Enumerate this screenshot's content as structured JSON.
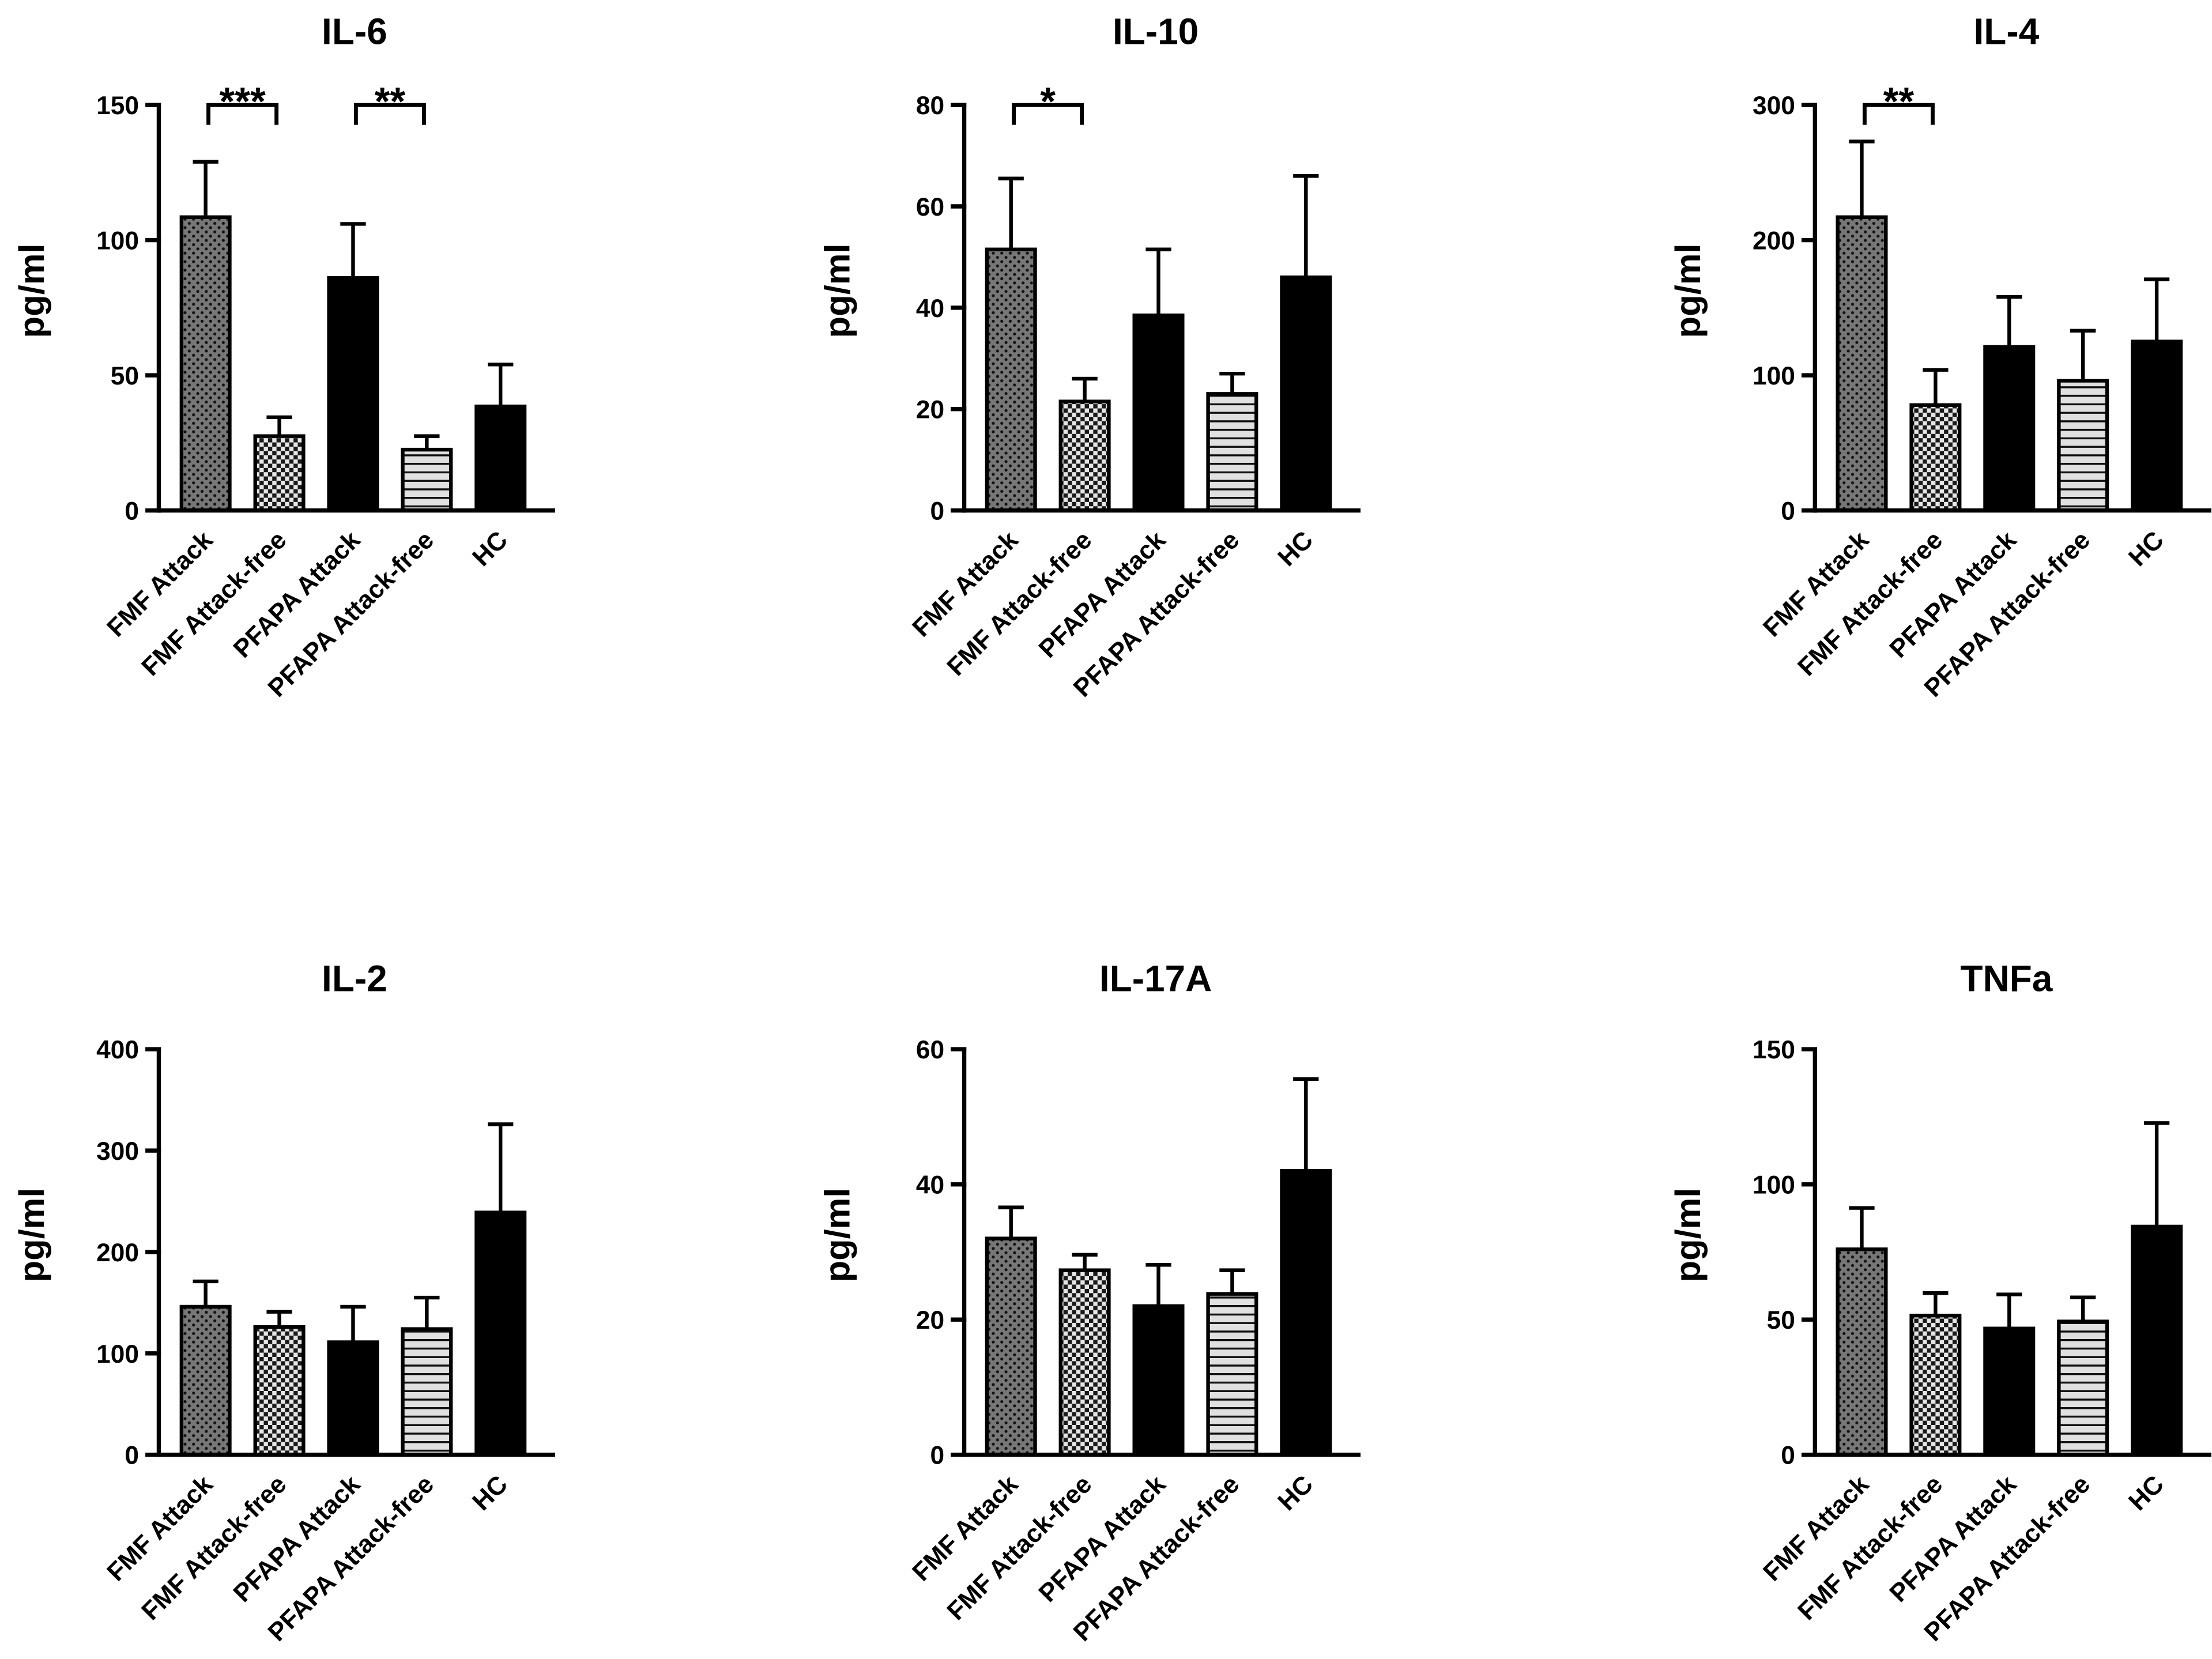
{
  "chart_data": [
    {
      "type": "bar",
      "title": "IL-6",
      "xlabel": "",
      "ylabel": "pg/ml",
      "categories": [
        "FMF Attack",
        "FMF Attack-free",
        "PFAPA Attack",
        "PFAPA Attack-free",
        "HC"
      ],
      "values": [
        108.5,
        27.5,
        86,
        22.5,
        38.5
      ],
      "errors": [
        20.5,
        7,
        20,
        5,
        15.5
      ],
      "ylim": [
        0,
        150
      ],
      "yticks": [
        0,
        50,
        100,
        150
      ],
      "significance": [
        {
          "from": 0,
          "to": 1,
          "label": "***"
        },
        {
          "from": 2,
          "to": 3,
          "label": "**"
        }
      ]
    },
    {
      "type": "bar",
      "title": "IL-10",
      "xlabel": "",
      "ylabel": "pg/ml",
      "categories": [
        "FMF Attack",
        "FMF Attack-free",
        "PFAPA Attack",
        "PFAPA Attack-free",
        "HC"
      ],
      "values": [
        51.5,
        21.5,
        38.5,
        23,
        46
      ],
      "errors": [
        14,
        4.5,
        13,
        4,
        20
      ],
      "ylim": [
        0,
        80
      ],
      "yticks": [
        0,
        20,
        40,
        60,
        80
      ],
      "significance": [
        {
          "from": 0,
          "to": 1,
          "label": "*"
        }
      ]
    },
    {
      "type": "bar",
      "title": "IL-4",
      "xlabel": "",
      "ylabel": "pg/ml",
      "categories": [
        "FMF Attack",
        "FMF Attack-free",
        "PFAPA Attack",
        "PFAPA Attack-free",
        "HC"
      ],
      "values": [
        217,
        78,
        121,
        96,
        125
      ],
      "errors": [
        56,
        26,
        37,
        37,
        46
      ],
      "ylim": [
        0,
        300
      ],
      "yticks": [
        0,
        100,
        200,
        300
      ],
      "significance": [
        {
          "from": 0,
          "to": 1,
          "label": "**"
        }
      ]
    },
    {
      "type": "bar",
      "title": "IL-2",
      "xlabel": "",
      "ylabel": "pg/ml",
      "categories": [
        "FMF Attack",
        "FMF Attack-free",
        "PFAPA Attack",
        "PFAPA Attack-free",
        "HC"
      ],
      "values": [
        146,
        126,
        111,
        124,
        239
      ],
      "errors": [
        25,
        15,
        35,
        31,
        87
      ],
      "ylim": [
        0,
        400
      ],
      "yticks": [
        0,
        100,
        200,
        300,
        400
      ],
      "significance": []
    },
    {
      "type": "bar",
      "title": "IL-17A",
      "xlabel": "",
      "ylabel": "pg/ml",
      "categories": [
        "FMF Attack",
        "FMF Attack-free",
        "PFAPA Attack",
        "PFAPA Attack-free",
        "HC"
      ],
      "values": [
        32,
        27.3,
        22,
        23.8,
        42
      ],
      "errors": [
        4.6,
        2.3,
        6.1,
        3.5,
        13.6
      ],
      "ylim": [
        0,
        60
      ],
      "yticks": [
        0,
        20,
        40,
        60
      ],
      "significance": []
    },
    {
      "type": "bar",
      "title": "TNFa",
      "xlabel": "",
      "ylabel": "pg/ml",
      "categories": [
        "FMF Attack",
        "FMF Attack-free",
        "PFAPA Attack",
        "PFAPA Attack-free",
        "HC"
      ],
      "values": [
        76,
        51.5,
        46.7,
        49.3,
        84.4
      ],
      "errors": [
        15.3,
        8.3,
        12.6,
        8.9,
        38.3
      ],
      "ylim": [
        0,
        150
      ],
      "yticks": [
        0,
        50,
        100,
        150
      ],
      "significance": []
    }
  ]
}
